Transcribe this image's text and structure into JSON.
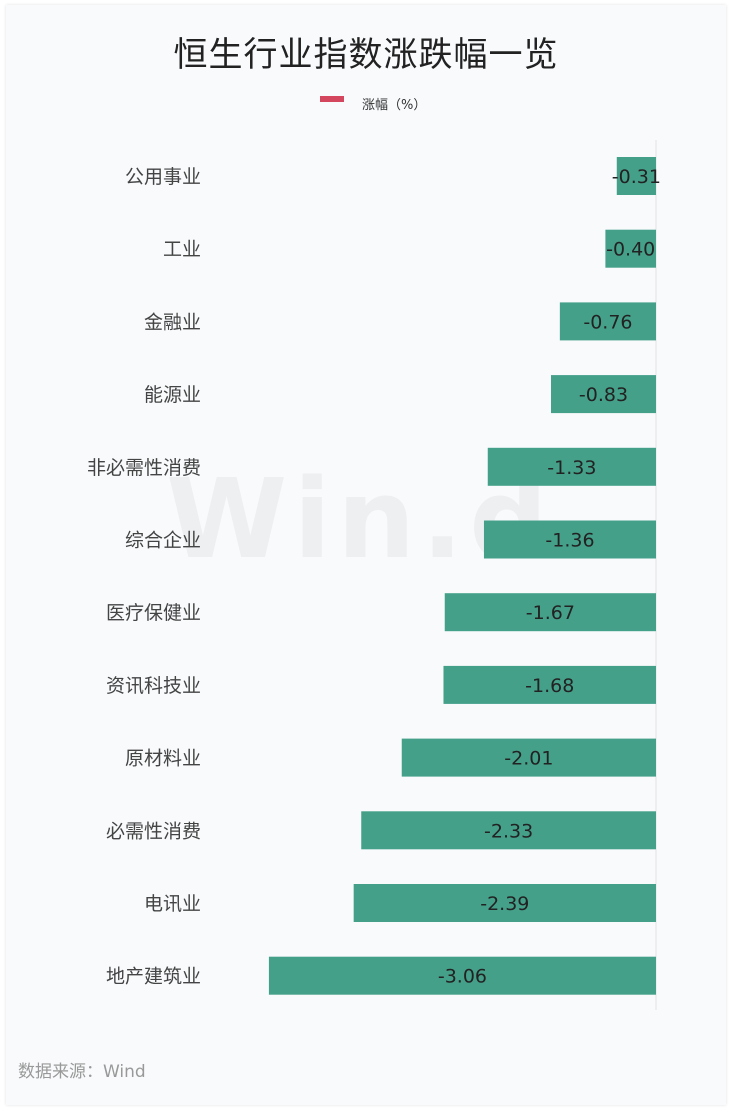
{
  "header": {
    "title": "恒生行业指数涨跌幅一览"
  },
  "legend": {
    "label": "涨幅（%）",
    "color": "#d4455e"
  },
  "watermark": "Win.d",
  "footer": {
    "source": "数据来源：Wind"
  },
  "colors": {
    "bar": "#45a08a",
    "axis": "#e3e3e3"
  },
  "chart_data": {
    "type": "bar",
    "orientation": "horizontal",
    "categories": [
      "公用事业",
      "工业",
      "金融业",
      "能源业",
      "非必需性消费",
      "综合企业",
      "医疗保健业",
      "资讯科技业",
      "原材料业",
      "必需性消费",
      "电讯业",
      "地产建筑业"
    ],
    "series": [
      {
        "name": "涨幅（%）",
        "values": [
          -0.31,
          -0.4,
          -0.76,
          -0.83,
          -1.33,
          -1.36,
          -1.67,
          -1.68,
          -2.01,
          -2.33,
          -2.39,
          -3.06
        ]
      }
    ],
    "data_labels": [
      "-0.31",
      "-0.40",
      "-0.76",
      "-0.83",
      "-1.33",
      "-1.36",
      "-1.67",
      "-1.68",
      "-2.01",
      "-2.33",
      "-2.39",
      "-3.06"
    ],
    "title": "恒生行业指数涨跌幅一览",
    "legend_position": "top-center",
    "grid": false
  }
}
